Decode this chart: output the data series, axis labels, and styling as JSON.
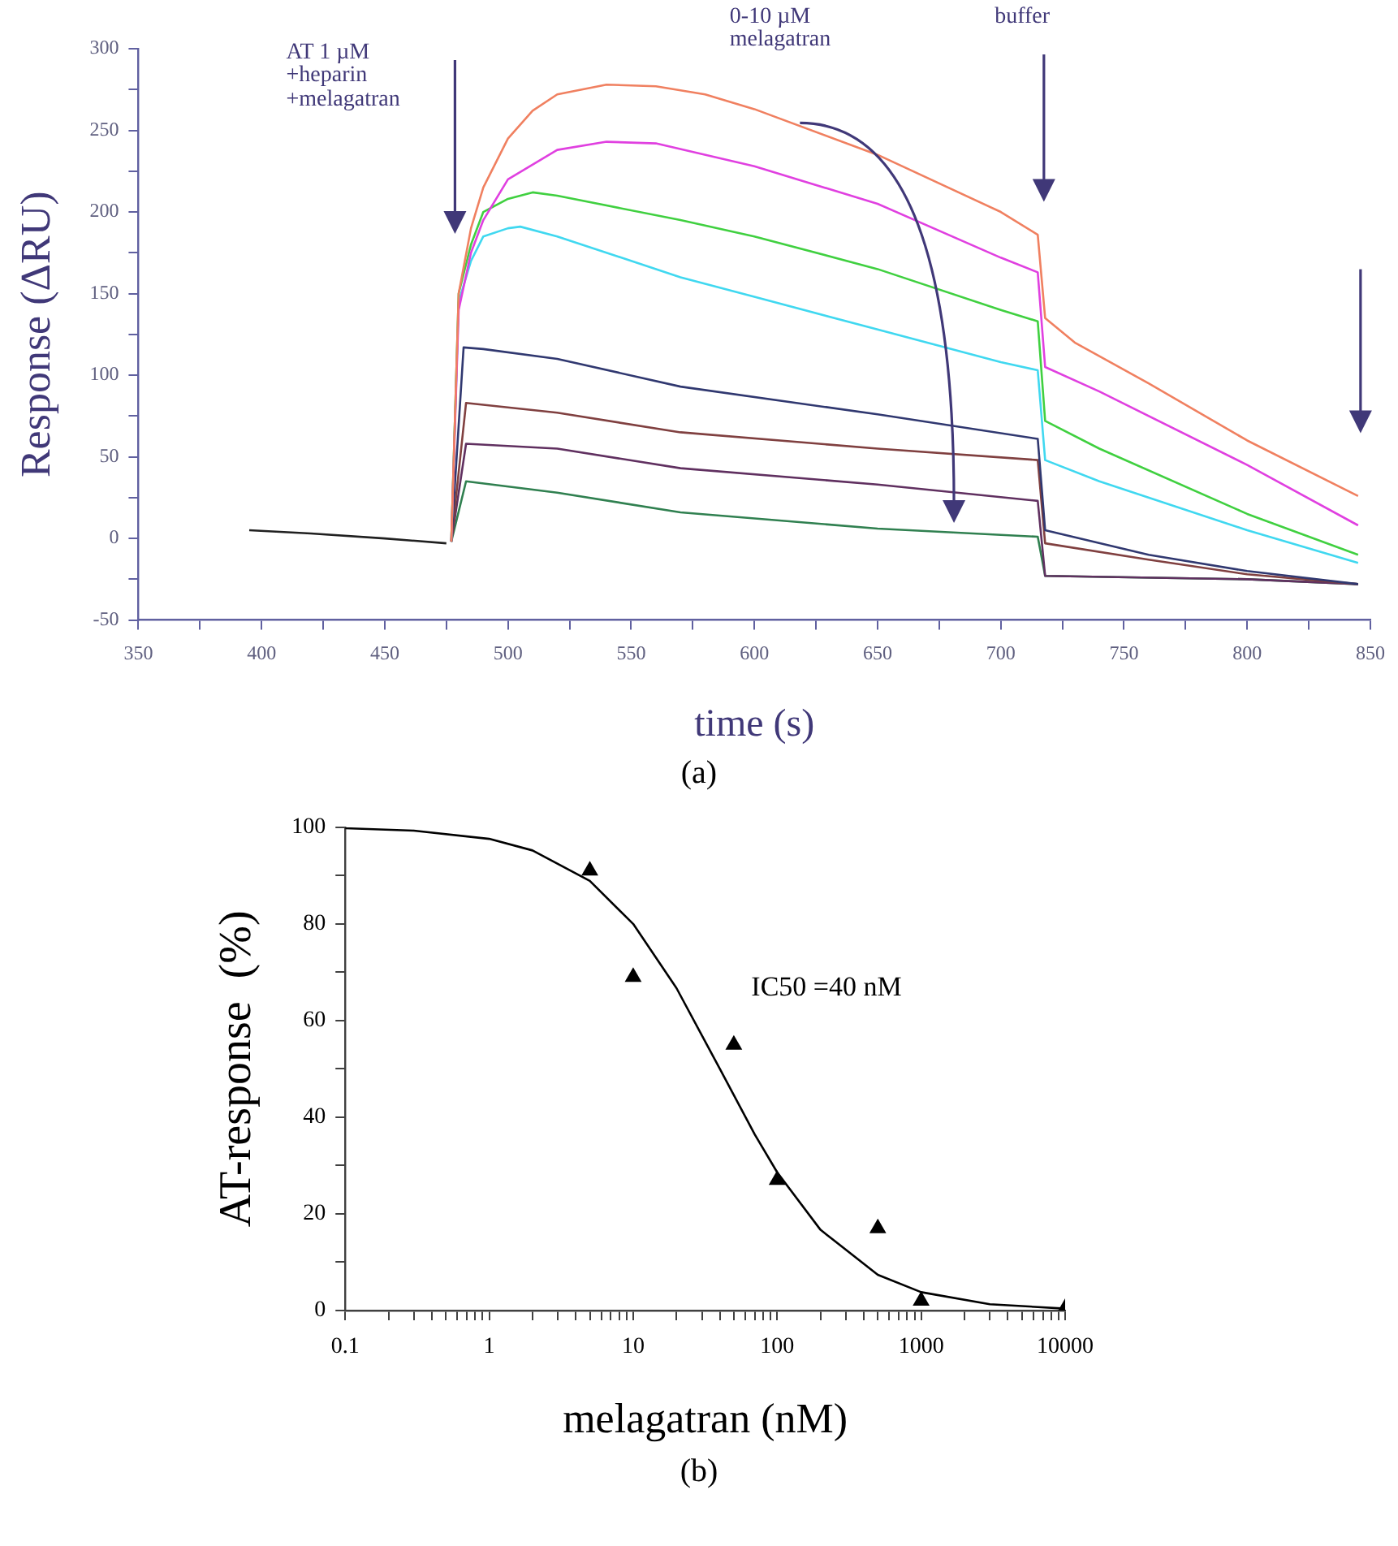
{
  "chart_data": [
    {
      "type": "line",
      "xlabel": "time (s)",
      "ylabel": "Response (ΔRU)",
      "xlim": [
        350,
        850
      ],
      "ylim": [
        -50,
        300
      ],
      "xticks": [
        350,
        {
          "value": 375,
          "label": null
        },
        400,
        {
          "value": 425,
          "label": null
        },
        450,
        {
          "value": 475,
          "label": null
        },
        500,
        {
          "value": 525,
          "label": null
        },
        550,
        {
          "value": 575,
          "label": null
        },
        600,
        {
          "value": 625,
          "label": null
        },
        650,
        {
          "value": 675,
          "label": null
        },
        700,
        {
          "value": 725,
          "label": null
        },
        750,
        {
          "value": 775,
          "label": null
        },
        800,
        {
          "value": 825,
          "label": null
        },
        850
      ],
      "yticks": [
        -50,
        {
          "value": -25,
          "label": null
        },
        0,
        {
          "value": 25,
          "label": null
        },
        50,
        {
          "value": 75,
          "label": null
        },
        100,
        {
          "value": 125,
          "label": null
        },
        150,
        {
          "value": 175,
          "label": null
        },
        200,
        {
          "value": 225,
          "label": null
        },
        250,
        {
          "value": 275,
          "label": null
        },
        300
      ],
      "marker": "none",
      "line_style": "solid",
      "legend": false,
      "grid": false,
      "series": [
        {
          "color": "#202020",
          "x": [
            395,
            420,
            450,
            475
          ],
          "values": [
            5,
            3,
            0,
            -3
          ]
        },
        {
          "color": "#f08060",
          "x": [
            477,
            480,
            485,
            490,
            500,
            510,
            520,
            540,
            560,
            580,
            600,
            650,
            700,
            715,
            718,
            730,
            760,
            800,
            845
          ],
          "values": [
            -2,
            150,
            190,
            215,
            245,
            262,
            272,
            278,
            277,
            272,
            263,
            235,
            200,
            186,
            135,
            120,
            95,
            60,
            26
          ]
        },
        {
          "color": "#e040e0",
          "x": [
            477,
            480,
            485,
            490,
            500,
            520,
            540,
            560,
            600,
            650,
            700,
            715,
            718,
            740,
            800,
            845
          ],
          "values": [
            -2,
            140,
            175,
            195,
            220,
            238,
            243,
            242,
            228,
            205,
            172,
            163,
            105,
            90,
            45,
            8
          ]
        },
        {
          "color": "#40d040",
          "x": [
            477,
            480,
            485,
            490,
            500,
            510,
            520,
            570,
            600,
            650,
            700,
            715,
            718,
            740,
            800,
            845
          ],
          "values": [
            -2,
            150,
            180,
            200,
            208,
            212,
            210,
            195,
            185,
            165,
            140,
            133,
            72,
            55,
            15,
            -10
          ]
        },
        {
          "color": "#40d8f0",
          "x": [
            477,
            480,
            485,
            490,
            500,
            505,
            520,
            570,
            600,
            650,
            700,
            715,
            718,
            740,
            800,
            845
          ],
          "values": [
            -2,
            145,
            170,
            185,
            190,
            191,
            185,
            160,
            148,
            128,
            108,
            103,
            48,
            35,
            5,
            -15
          ]
        },
        {
          "color": "#303870",
          "x": [
            477,
            482,
            490,
            520,
            570,
            650,
            715,
            718,
            760,
            800,
            845
          ],
          "values": [
            -2,
            117,
            116,
            110,
            93,
            76,
            61,
            5,
            -10,
            -20,
            -28
          ]
        },
        {
          "color": "#804040",
          "x": [
            477,
            483,
            520,
            570,
            650,
            715,
            718,
            760,
            800,
            845
          ],
          "values": [
            -2,
            83,
            77,
            65,
            55,
            48,
            -3,
            -13,
            -22,
            -28
          ]
        },
        {
          "color": "#603060",
          "x": [
            477,
            483,
            520,
            570,
            650,
            715,
            718,
            800,
            845
          ],
          "values": [
            -2,
            58,
            55,
            43,
            33,
            23,
            -23,
            -25,
            -28
          ]
        },
        {
          "color": "#308050",
          "x": [
            477,
            483,
            520,
            570,
            650,
            715,
            718,
            800,
            845
          ],
          "values": [
            -2,
            35,
            28,
            16,
            6,
            1,
            -23,
            -25,
            -28
          ]
        }
      ],
      "annotations": [
        "AT 1 µM\n+heparin\n+melagatran",
        "0-10 µM\nmelagatran",
        "buffer",
        "(a)"
      ]
    },
    {
      "type": "scatter",
      "xlabel": "melagatran (nM)",
      "ylabel": "AT-response  (%)",
      "log": "x",
      "xlim": [
        0.1,
        10000
      ],
      "ylim": [
        0,
        100
      ],
      "xticks": [
        0.1,
        {
          "value": 0.2,
          "label": null
        },
        {
          "value": 0.3,
          "label": null
        },
        {
          "value": 0.4,
          "label": null
        },
        {
          "value": 0.5,
          "label": null
        },
        {
          "value": 0.6,
          "label": null
        },
        {
          "value": 0.7,
          "label": null
        },
        {
          "value": 0.8,
          "label": null
        },
        {
          "value": 0.9,
          "label": null
        },
        1,
        {
          "value": 2,
          "label": null
        },
        {
          "value": 3,
          "label": null
        },
        {
          "value": 4,
          "label": null
        },
        {
          "value": 5,
          "label": null
        },
        {
          "value": 6,
          "label": null
        },
        {
          "value": 7,
          "label": null
        },
        {
          "value": 8,
          "label": null
        },
        {
          "value": 9,
          "label": null
        },
        10,
        {
          "value": 20,
          "label": null
        },
        {
          "value": 30,
          "label": null
        },
        {
          "value": 40,
          "label": null
        },
        {
          "value": 50,
          "label": null
        },
        {
          "value": 60,
          "label": null
        },
        {
          "value": 70,
          "label": null
        },
        {
          "value": 80,
          "label": null
        },
        {
          "value": 90,
          "label": null
        },
        100,
        {
          "value": 200,
          "label": null
        },
        {
          "value": 300,
          "label": null
        },
        {
          "value": 400,
          "label": null
        },
        {
          "value": 500,
          "label": null
        },
        {
          "value": 600,
          "label": null
        },
        {
          "value": 700,
          "label": null
        },
        {
          "value": 800,
          "label": null
        },
        {
          "value": 900,
          "label": null
        },
        1000,
        {
          "value": 2000,
          "label": null
        },
        {
          "value": 3000,
          "label": null
        },
        {
          "value": 4000,
          "label": null
        },
        {
          "value": 5000,
          "label": null
        },
        {
          "value": 6000,
          "label": null
        },
        {
          "value": 7000,
          "label": null
        },
        {
          "value": 8000,
          "label": null
        },
        {
          "value": 9000,
          "label": null
        },
        10000
      ],
      "yticks": [
        0,
        {
          "value": 10,
          "label": null
        },
        20,
        {
          "value": 30,
          "label": null
        },
        40,
        {
          "value": 50,
          "label": null
        },
        60,
        {
          "value": 70,
          "label": null
        },
        80,
        {
          "value": 90,
          "label": null
        },
        100
      ],
      "legend": false,
      "grid": false,
      "series": [
        {
          "type": "scatter",
          "marker": "triangle",
          "color": "#000000",
          "x": [
            5,
            10,
            50,
            100,
            500,
            1000,
            10000
          ],
          "values": [
            91,
            69,
            55,
            27,
            17,
            2,
            0.5
          ]
        },
        {
          "type": "line",
          "marker": "none",
          "line_style": "solid",
          "color": "#000000",
          "x": [
            0.1,
            0.3,
            1,
            2,
            5,
            10,
            20,
            40,
            70,
            100,
            200,
            500,
            1000,
            3000,
            10000
          ],
          "values": [
            99.8,
            99.3,
            97.6,
            95.2,
            88.9,
            80,
            66.7,
            50,
            36.4,
            28.6,
            16.7,
            7.4,
            3.8,
            1.3,
            0.4
          ]
        }
      ],
      "annotations": [
        "IC50 =40  nM",
        "(b)"
      ]
    }
  ]
}
